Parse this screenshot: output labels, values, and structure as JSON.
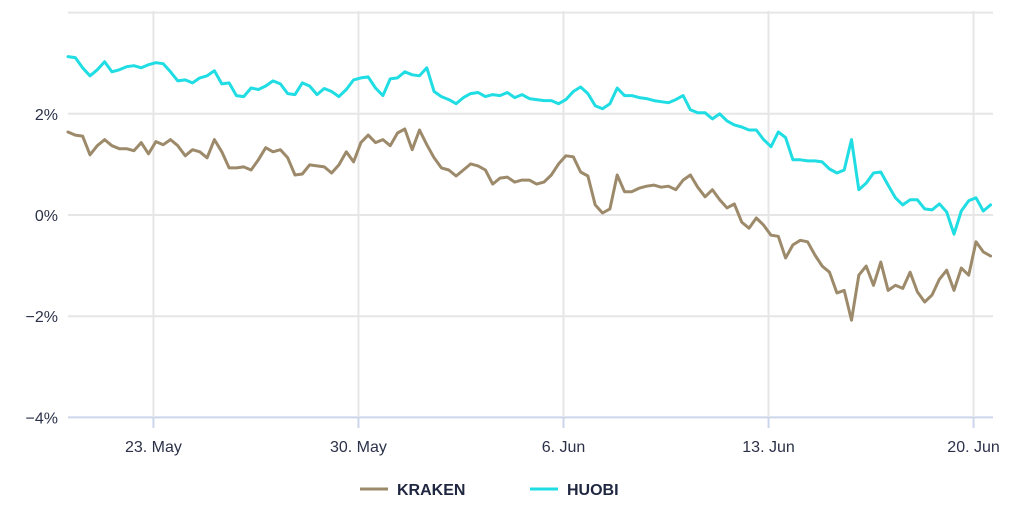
{
  "chart_data": {
    "type": "line",
    "title": "",
    "xlabel": "",
    "ylabel": "",
    "x_start": "05-20 02:00",
    "x_interval_hours": 6,
    "x_ticks": [
      {
        "date": "05-23",
        "label": "23. May"
      },
      {
        "date": "05-30",
        "label": "30. May"
      },
      {
        "date": "06-06",
        "label": "6. Jun"
      },
      {
        "date": "06-13",
        "label": "13. Jun"
      },
      {
        "date": "06-20",
        "label": "20. Jun"
      }
    ],
    "y_ticks": [
      {
        "value": 4,
        "label": ""
      },
      {
        "value": 2,
        "label": "2%"
      },
      {
        "value": 0,
        "label": "0%"
      },
      {
        "value": -2,
        "label": "−2%"
      },
      {
        "value": -4,
        "label": "−4%"
      }
    ],
    "ylim": [
      -4,
      4
    ],
    "y_unit": "%",
    "grid": true,
    "legend_position": "bottom-center",
    "series": [
      {
        "name": "KRAKEN",
        "color": "#9c8a6a",
        "values": [
          1.64,
          1.58,
          1.56,
          1.19,
          1.37,
          1.49,
          1.37,
          1.31,
          1.31,
          1.27,
          1.43,
          1.21,
          1.45,
          1.39,
          1.49,
          1.37,
          1.17,
          1.29,
          1.25,
          1.13,
          1.49,
          1.25,
          0.93,
          0.93,
          0.95,
          0.89,
          1.09,
          1.33,
          1.25,
          1.29,
          1.13,
          0.79,
          0.81,
          0.99,
          0.97,
          0.95,
          0.83,
          0.99,
          1.25,
          1.05,
          1.43,
          1.58,
          1.43,
          1.49,
          1.37,
          1.62,
          1.7,
          1.29,
          1.68,
          1.39,
          1.13,
          0.93,
          0.89,
          0.77,
          0.89,
          1.01,
          0.97,
          0.89,
          0.61,
          0.73,
          0.75,
          0.65,
          0.69,
          0.69,
          0.61,
          0.65,
          0.79,
          1.01,
          1.17,
          1.15,
          0.85,
          0.77,
          0.2,
          0.04,
          0.12,
          0.79,
          0.46,
          0.46,
          0.53,
          0.57,
          0.59,
          0.55,
          0.57,
          0.5,
          0.69,
          0.79,
          0.55,
          0.36,
          0.5,
          0.3,
          0.14,
          0.22,
          -0.14,
          -0.26,
          -0.06,
          -0.2,
          -0.4,
          -0.42,
          -0.85,
          -0.59,
          -0.5,
          -0.53,
          -0.79,
          -1.01,
          -1.13,
          -1.54,
          -1.49,
          -2.08,
          -1.19,
          -1.01,
          -1.39,
          -0.93,
          -1.49,
          -1.39,
          -1.45,
          -1.13,
          -1.52,
          -1.72,
          -1.58,
          -1.27,
          -1.09,
          -1.49,
          -1.05,
          -1.19,
          -0.53,
          -0.73,
          -0.81
        ]
      },
      {
        "name": "HUOBI",
        "color": "#1fdde3",
        "values": [
          3.13,
          3.11,
          2.91,
          2.75,
          2.87,
          3.03,
          2.83,
          2.87,
          2.93,
          2.95,
          2.91,
          2.97,
          3.01,
          2.99,
          2.83,
          2.65,
          2.67,
          2.61,
          2.71,
          2.75,
          2.85,
          2.59,
          2.61,
          2.36,
          2.34,
          2.51,
          2.48,
          2.55,
          2.65,
          2.59,
          2.4,
          2.38,
          2.61,
          2.55,
          2.38,
          2.5,
          2.44,
          2.34,
          2.48,
          2.67,
          2.71,
          2.73,
          2.51,
          2.36,
          2.69,
          2.71,
          2.83,
          2.77,
          2.75,
          2.91,
          2.44,
          2.34,
          2.28,
          2.2,
          2.32,
          2.4,
          2.42,
          2.34,
          2.38,
          2.36,
          2.42,
          2.32,
          2.38,
          2.3,
          2.28,
          2.26,
          2.26,
          2.2,
          2.28,
          2.44,
          2.53,
          2.4,
          2.16,
          2.1,
          2.2,
          2.51,
          2.36,
          2.36,
          2.32,
          2.3,
          2.26,
          2.24,
          2.22,
          2.28,
          2.36,
          2.08,
          2.02,
          2.02,
          1.9,
          2.0,
          1.86,
          1.78,
          1.74,
          1.68,
          1.68,
          1.49,
          1.35,
          1.64,
          1.53,
          1.09,
          1.09,
          1.07,
          1.07,
          1.05,
          0.91,
          0.83,
          0.89,
          1.49,
          0.5,
          0.63,
          0.83,
          0.85,
          0.59,
          0.34,
          0.2,
          0.3,
          0.3,
          0.12,
          0.1,
          0.22,
          0.06,
          -0.38,
          0.08,
          0.28,
          0.34,
          0.08,
          0.2
        ]
      }
    ]
  }
}
